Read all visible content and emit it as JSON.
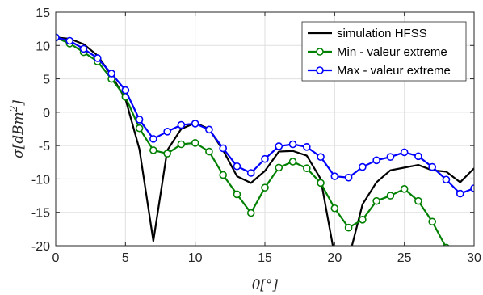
{
  "chart_data": {
    "type": "line",
    "title": "",
    "xlabel": "θ[°]",
    "ylabel_main": "σ[dBm",
    "ylabel_sup": "2",
    "ylabel_close": "]",
    "xlim": [
      0,
      30
    ],
    "ylim": [
      -20,
      15
    ],
    "xticks": [
      "0",
      "5",
      "10",
      "15",
      "20",
      "25",
      "30"
    ],
    "yticks": [
      "15",
      "10",
      "5",
      "0",
      "-5",
      "-10",
      "-15",
      "-20"
    ],
    "grid": true,
    "legend_position": "top-right",
    "series": [
      {
        "name": "simulation HFSS",
        "color": "#000000",
        "marker": "none",
        "x": [
          0,
          1,
          2,
          3,
          4,
          5,
          6,
          7,
          8,
          9,
          10,
          11,
          12,
          13,
          14,
          15,
          16,
          17,
          18,
          19,
          20,
          21,
          22,
          23,
          24,
          25,
          26,
          27,
          28,
          29,
          30
        ],
        "y": [
          11.2,
          11,
          10.2,
          8.5,
          5.5,
          2,
          -5.5,
          -19.3,
          -5.7,
          -2.5,
          -1.6,
          -2.5,
          -5.7,
          -9.6,
          -10.6,
          -8.8,
          -5.9,
          -5.8,
          -6.5,
          -10,
          -21.5,
          -22,
          -13.8,
          -10.5,
          -8.7,
          -8.3,
          -7.9,
          -8.7,
          -8.9,
          -10.5,
          -8.4
        ]
      },
      {
        "name": "Min - valeur extreme",
        "color": "#008000",
        "marker": "circle",
        "x": [
          0,
          1,
          2,
          3,
          4,
          5,
          6,
          7,
          8,
          9,
          10,
          11,
          12,
          13,
          14,
          15,
          16,
          17,
          18,
          19,
          20,
          21,
          22,
          23,
          24,
          25,
          26,
          27,
          28
        ],
        "y": [
          11.2,
          10.3,
          9,
          7.6,
          5,
          2.3,
          -2.4,
          -5.7,
          -6.2,
          -4.8,
          -4.6,
          -5.9,
          -9.4,
          -12.3,
          -15.1,
          -11.3,
          -8.3,
          -7.4,
          -8.4,
          -10.6,
          -14.4,
          -17.3,
          -16.1,
          -13.3,
          -12.5,
          -11.5,
          -13.3,
          -16.4,
          -20.3
        ]
      },
      {
        "name": "Max - valeur extreme",
        "color": "#0000ff",
        "marker": "circle",
        "x": [
          0,
          1,
          2,
          3,
          4,
          5,
          6,
          7,
          8,
          9,
          10,
          11,
          12,
          13,
          14,
          15,
          16,
          17,
          18,
          19,
          20,
          21,
          22,
          23,
          24,
          25,
          26,
          27,
          28,
          29,
          30
        ],
        "y": [
          11.2,
          10.7,
          9.5,
          8.1,
          5.8,
          3.3,
          -1.1,
          -4,
          -2.9,
          -1.9,
          -1.7,
          -2.6,
          -5.4,
          -8.1,
          -9.1,
          -7,
          -5.1,
          -4.8,
          -5.2,
          -6.7,
          -9.6,
          -9.8,
          -8.2,
          -7.2,
          -6.7,
          -6,
          -6.6,
          -8.2,
          -10.1,
          -12.2,
          -11.4
        ]
      }
    ]
  }
}
